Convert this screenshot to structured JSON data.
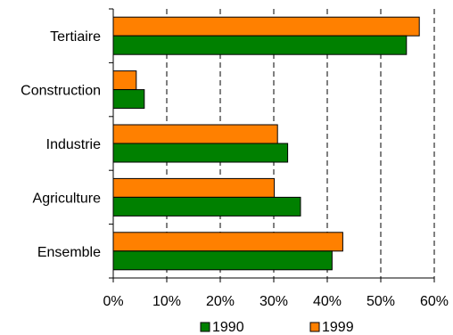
{
  "chart_data": {
    "type": "bar",
    "orientation": "horizontal",
    "categories": [
      "Tertiaire",
      "Construction",
      "Industrie",
      "Agriculture",
      "Ensemble"
    ],
    "series": [
      {
        "name": "1999",
        "color": "#ff8000",
        "values": [
          57.2,
          4.3,
          30.7,
          30.1,
          42.9
        ]
      },
      {
        "name": "1990",
        "color": "#008000",
        "values": [
          54.8,
          5.8,
          32.6,
          35.0,
          40.9
        ]
      }
    ],
    "xlim": [
      0,
      60
    ],
    "xticks": [
      0,
      10,
      20,
      30,
      40,
      50,
      60
    ],
    "xtick_labels": [
      "0%",
      "10%",
      "20%",
      "30%",
      "40%",
      "50%",
      "60%"
    ],
    "grid": "vertical dashed",
    "legend": {
      "placement": "bottom",
      "entries": [
        "1990",
        "1999"
      ]
    },
    "title": "",
    "xlabel": "",
    "ylabel": ""
  }
}
